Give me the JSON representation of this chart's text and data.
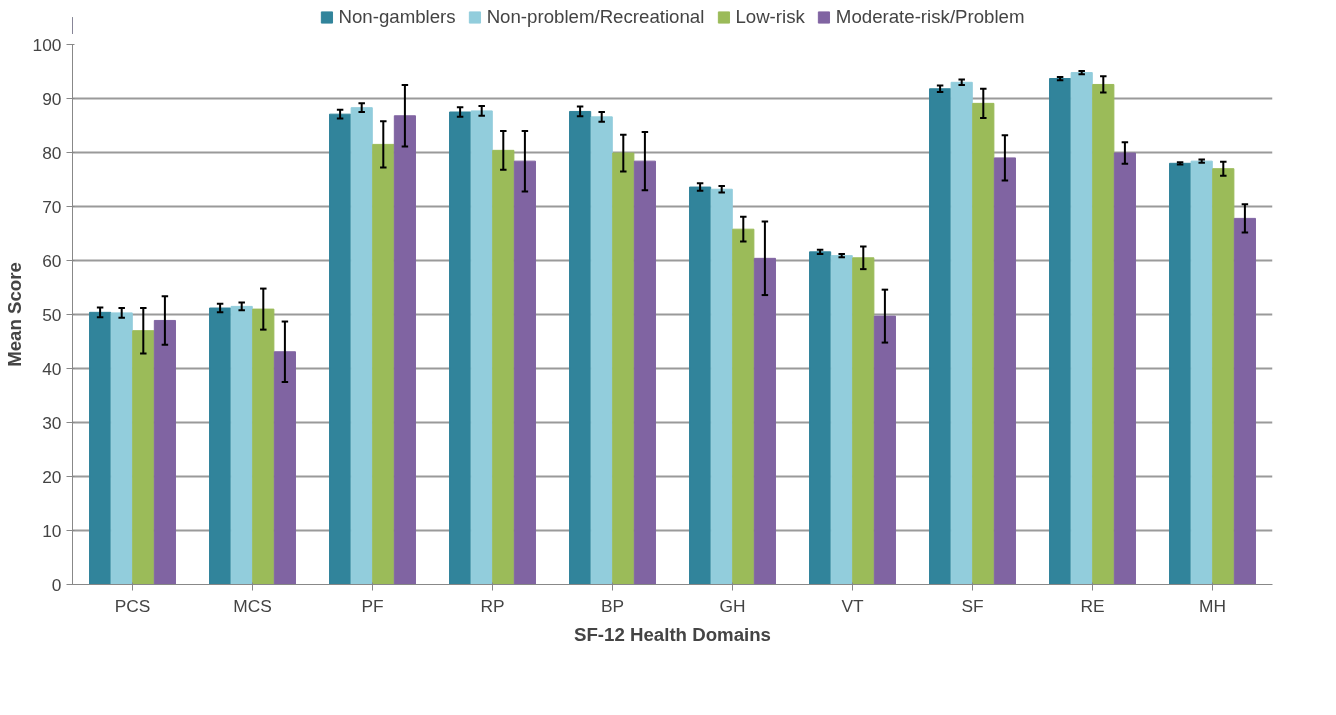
{
  "chart_data": {
    "type": "bar",
    "xlabel": "SF-12 Health Domains",
    "ylabel": "Mean Score",
    "categories": [
      "PCS",
      "MCS",
      "PF",
      "RP",
      "BP",
      "GH",
      "VT",
      "SF",
      "RE",
      "MH"
    ],
    "series": [
      {
        "name": "Non-gamblers",
        "color": "#31849b",
        "values": [
          50.4,
          51.2,
          87.1,
          87.5,
          87.6,
          73.6,
          61.6,
          91.8,
          93.7,
          78.0
        ],
        "errors": [
          0.9,
          0.8,
          0.8,
          0.9,
          0.9,
          0.7,
          0.4,
          0.6,
          0.3,
          0.2
        ]
      },
      {
        "name": "Non-problem/Recreational",
        "color": "#92cddc",
        "values": [
          50.3,
          51.5,
          88.3,
          87.7,
          86.6,
          73.2,
          60.9,
          93.0,
          94.8,
          78.4
        ],
        "errors": [
          0.9,
          0.7,
          0.8,
          0.9,
          0.9,
          0.6,
          0.3,
          0.5,
          0.3,
          0.3
        ]
      },
      {
        "name": "Low-risk",
        "color": "#9bbb59",
        "values": [
          47.0,
          51.0,
          81.5,
          80.4,
          79.9,
          65.8,
          60.5,
          89.1,
          92.6,
          77.0
        ],
        "errors": [
          4.2,
          3.8,
          4.3,
          3.6,
          3.4,
          2.3,
          2.1,
          2.7,
          1.5,
          1.3
        ]
      },
      {
        "name": "Moderate-risk/Problem",
        "color": "#8064a2",
        "values": [
          48.9,
          43.1,
          86.8,
          78.4,
          78.4,
          60.4,
          49.7,
          79.0,
          79.9,
          67.8
        ],
        "errors": [
          4.5,
          5.6,
          5.7,
          5.6,
          5.4,
          6.8,
          4.9,
          4.2,
          2.0,
          2.6
        ]
      }
    ],
    "ylim": [
      0,
      100
    ],
    "yticks": [
      0,
      10,
      20,
      30,
      40,
      50,
      60,
      70,
      80,
      90,
      100
    ],
    "grid": "y",
    "legend": "top"
  }
}
